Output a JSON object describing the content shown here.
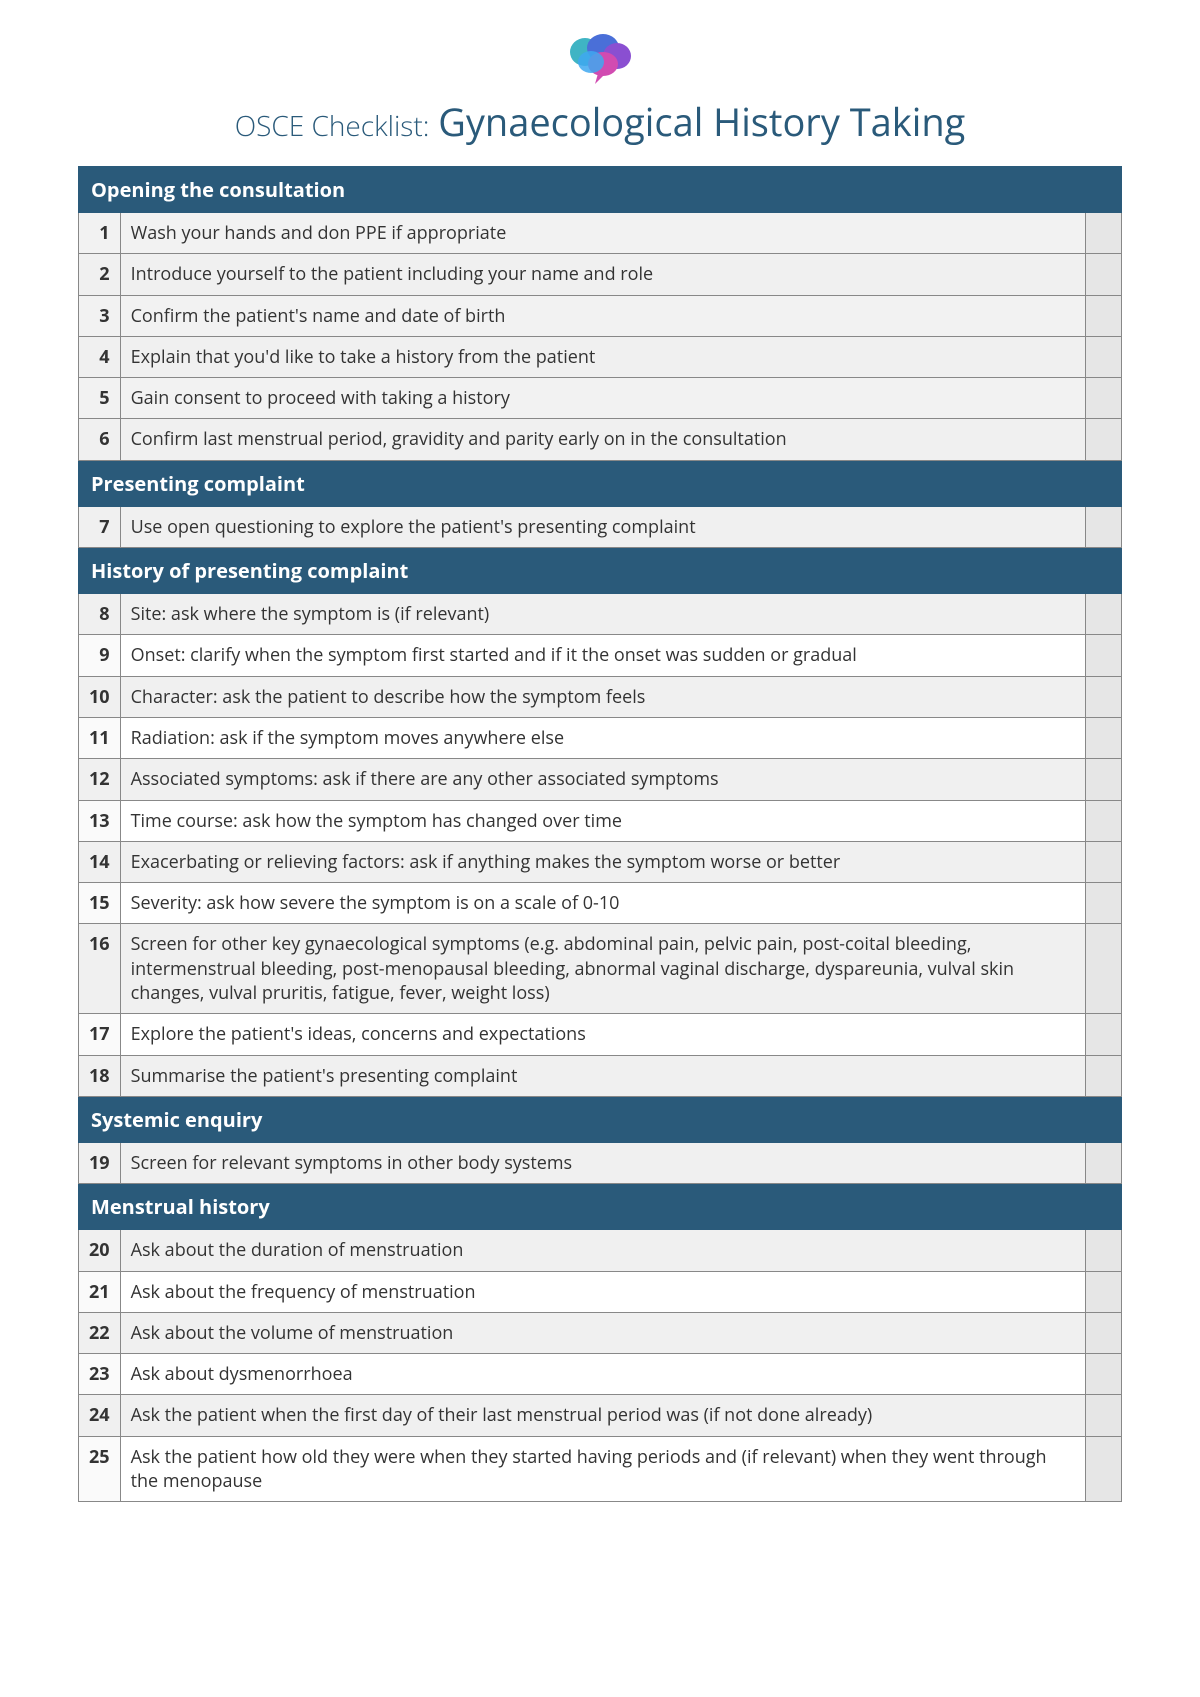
{
  "title_prefix": "OSCE Checklist:",
  "title_main": "Gynaecological History Taking",
  "logo_colors": [
    "#3fb4c4",
    "#4a6fd8",
    "#8a4fd1",
    "#d14bb1",
    "#3fa8f0"
  ],
  "section_bg": "#2a5a7a",
  "section_fg": "#ffffff",
  "border_color": "#888888",
  "check_bg": "#e6e6e6",
  "sections": [
    {
      "title": "Opening the consultation",
      "start": 1,
      "items": [
        "Wash your hands and don PPE if appropriate",
        "Introduce yourself to the patient including your name and role",
        "Confirm the patient's name and date of birth",
        "Explain that you'd like to take a history from the patient",
        "Gain consent to proceed with taking a history",
        "Confirm last menstrual period, gravidity and parity early on in the consultation"
      ]
    },
    {
      "title": "Presenting complaint",
      "start": 7,
      "items": [
        "Use open questioning to explore the patient's presenting complaint"
      ]
    },
    {
      "title": "History of presenting complaint",
      "start": 8,
      "items": [
        "Site: ask where the symptom is (if relevant)",
        "Onset: clarify when the symptom first started and if it the onset was sudden or gradual",
        "Character: ask the patient to describe how the symptom feels",
        "Radiation: ask if the symptom moves anywhere else",
        "Associated symptoms: ask if there are any other associated symptoms",
        "Time course: ask how the symptom has changed over time",
        "Exacerbating or relieving factors: ask if anything makes the symptom worse or better",
        "Severity: ask how severe the symptom is on a scale of 0-10",
        "Screen for other key gynaecological symptoms (e.g. abdominal pain, pelvic pain, post-coital bleeding, intermenstrual bleeding, post-menopausal bleeding, abnormal vaginal discharge, dyspareunia, vulval skin changes, vulval pruritis, fatigue, fever, weight loss)",
        "Explore the patient's ideas, concerns and expectations",
        "Summarise the patient's presenting complaint"
      ]
    },
    {
      "title": "Systemic enquiry",
      "start": 19,
      "items": [
        "Screen for relevant symptoms in other body systems"
      ]
    },
    {
      "title": "Menstrual history",
      "start": 20,
      "items": [
        "Ask about the duration of menstruation",
        "Ask about the frequency of menstruation",
        "Ask about the volume of menstruation",
        "Ask about dysmenorrhoea",
        "Ask the patient when the first day of their last menstrual period was (if not done already)",
        "Ask the patient how old they were when they started having periods and (if relevant) when they went through the menopause"
      ]
    }
  ]
}
